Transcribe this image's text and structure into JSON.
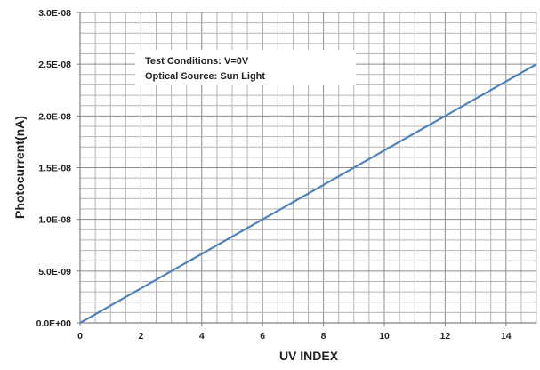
{
  "chart_data": {
    "type": "line",
    "title": "",
    "xlabel": "UV INDEX",
    "ylabel": "Photocurrent(nA)",
    "xlim": [
      0,
      15
    ],
    "ylim": [
      0,
      3e-08
    ],
    "x_ticks": [
      0,
      2,
      4,
      6,
      8,
      10,
      12,
      14
    ],
    "x_tick_labels": [
      "0",
      "2",
      "4",
      "6",
      "8",
      "10",
      "12",
      "14"
    ],
    "y_ticks": [
      0,
      5e-09,
      1e-08,
      1.5e-08,
      2e-08,
      2.5e-08,
      3e-08
    ],
    "y_tick_labels": [
      "0.0E+00",
      "5.0E-09",
      "1.0E-08",
      "1.5E-08",
      "2.0E-08",
      "2.5E-08",
      "3.0E-08"
    ],
    "grid": true,
    "series": [
      {
        "x": [
          0,
          15
        ],
        "y": [
          0,
          2.5e-08
        ],
        "color": "#4f81bd"
      }
    ],
    "annotation": {
      "lines": [
        "Test Conditions: V=0V",
        "Optical Source:  Sun Light"
      ]
    }
  }
}
